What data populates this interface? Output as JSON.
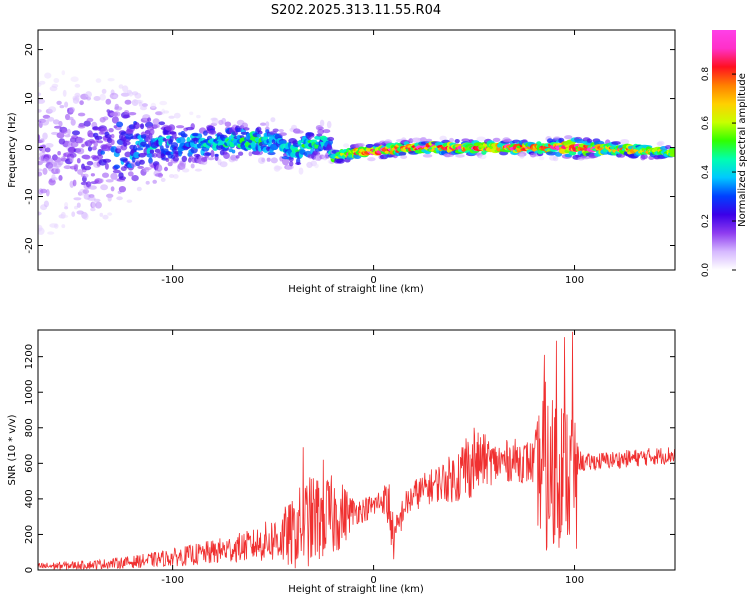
{
  "title": "S202.2025.313.11.55.R04",
  "chart_data": [
    {
      "type": "heatmap",
      "xlabel": "Height of straight line (km)",
      "ylabel": "Frequency (Hz)",
      "xlim": [
        -167,
        150
      ],
      "ylim": [
        -25,
        24
      ],
      "xticks": [
        -100,
        0,
        100
      ],
      "yticks": [
        -20,
        -10,
        0,
        10,
        20
      ],
      "colorbar": {
        "label": "Normalized spectral amplitude",
        "range": [
          0,
          0.98
        ],
        "ticks": [
          "0.0",
          "0.2",
          "0.4",
          "0.6",
          "0.8"
        ],
        "tick_values": [
          0.0,
          0.2,
          0.4,
          0.6,
          0.8
        ],
        "colors": [
          "#ffffff",
          "#d6b8ff",
          "#8e3cf0",
          "#3b00e8",
          "#0040ff",
          "#00c8ff",
          "#00ffb0",
          "#30ff00",
          "#c8ff00",
          "#ffd000",
          "#ff8000",
          "#ff1020",
          "#ff30c8",
          "#ff40e8"
        ]
      },
      "ridge": {
        "x": [
          -160,
          -140,
          -120,
          -100,
          -80,
          -60,
          -50,
          -40,
          -30,
          -22,
          -20,
          -15,
          -10,
          0,
          20,
          40,
          60,
          80,
          100,
          120,
          150
        ],
        "freq": [
          -1.0,
          -0.5,
          0.0,
          0.5,
          1.0,
          1.5,
          1.0,
          -0.5,
          0.5,
          1.5,
          -2.0,
          -1.5,
          -1.0,
          -0.8,
          0.0,
          0.0,
          0.0,
          0.0,
          0.0,
          -0.3,
          -1.0
        ],
        "amplitude": [
          0.15,
          0.2,
          0.3,
          0.35,
          0.45,
          0.5,
          0.4,
          0.45,
          0.5,
          0.4,
          0.55,
          0.75,
          0.85,
          0.9,
          0.85,
          0.9,
          0.9,
          0.85,
          0.9,
          0.8,
          0.6
        ],
        "bandwidth_hz": [
          25,
          22,
          16,
          8,
          6,
          5,
          6,
          6,
          5,
          5,
          2,
          2,
          2,
          2,
          2,
          2,
          2,
          2,
          3,
          2,
          2
        ]
      }
    },
    {
      "type": "line",
      "xlabel": "Height of straight line (km)",
      "ylabel": "SNR (10 * v/v)",
      "xlim": [
        -167,
        150
      ],
      "ylim": [
        0,
        1350
      ],
      "xticks": [
        -100,
        0,
        100
      ],
      "yticks": [
        0,
        200,
        400,
        600,
        800,
        1000,
        1200
      ],
      "line_color": "#f03030",
      "series": [
        {
          "x": [
            -167,
            -140,
            -120,
            -100,
            -80,
            -60,
            -50,
            -40,
            -35,
            -30,
            -25,
            -20,
            -15,
            -10,
            -5,
            0,
            5,
            8,
            10,
            15,
            20,
            30,
            40,
            45,
            50,
            55,
            60,
            70,
            80,
            82,
            85,
            88,
            90,
            95,
            98,
            100,
            102,
            105,
            110,
            120,
            130,
            140,
            150
          ],
          "y": [
            20,
            30,
            45,
            70,
            100,
            140,
            170,
            200,
            260,
            280,
            300,
            300,
            310,
            330,
            340,
            360,
            400,
            350,
            150,
            350,
            420,
            480,
            520,
            560,
            600,
            620,
            600,
            620,
            600,
            550,
            600,
            500,
            550,
            620,
            500,
            550,
            620,
            600,
            610,
            620,
            630,
            640,
            650
          ],
          "noise": [
            20,
            25,
            35,
            50,
            70,
            90,
            130,
            200,
            250,
            260,
            250,
            230,
            180,
            80,
            70,
            70,
            80,
            180,
            120,
            80,
            90,
            100,
            140,
            200,
            180,
            150,
            120,
            120,
            130,
            350,
            500,
            400,
            600,
            300,
            600,
            300,
            60,
            50,
            50,
            50,
            50,
            50,
            50
          ],
          "spikes": [
            {
              "x": -35,
              "y": 690
            },
            {
              "x": -25,
              "y": 620
            },
            {
              "x": 10,
              "y": 60
            },
            {
              "x": 46,
              "y": 740
            },
            {
              "x": 50,
              "y": 800
            },
            {
              "x": 85,
              "y": 1210
            },
            {
              "x": 86,
              "y": 110
            },
            {
              "x": 91,
              "y": 1290
            },
            {
              "x": 95,
              "y": 1310
            },
            {
              "x": 99,
              "y": 1340
            },
            {
              "x": 101,
              "y": 120
            }
          ]
        }
      ]
    }
  ]
}
